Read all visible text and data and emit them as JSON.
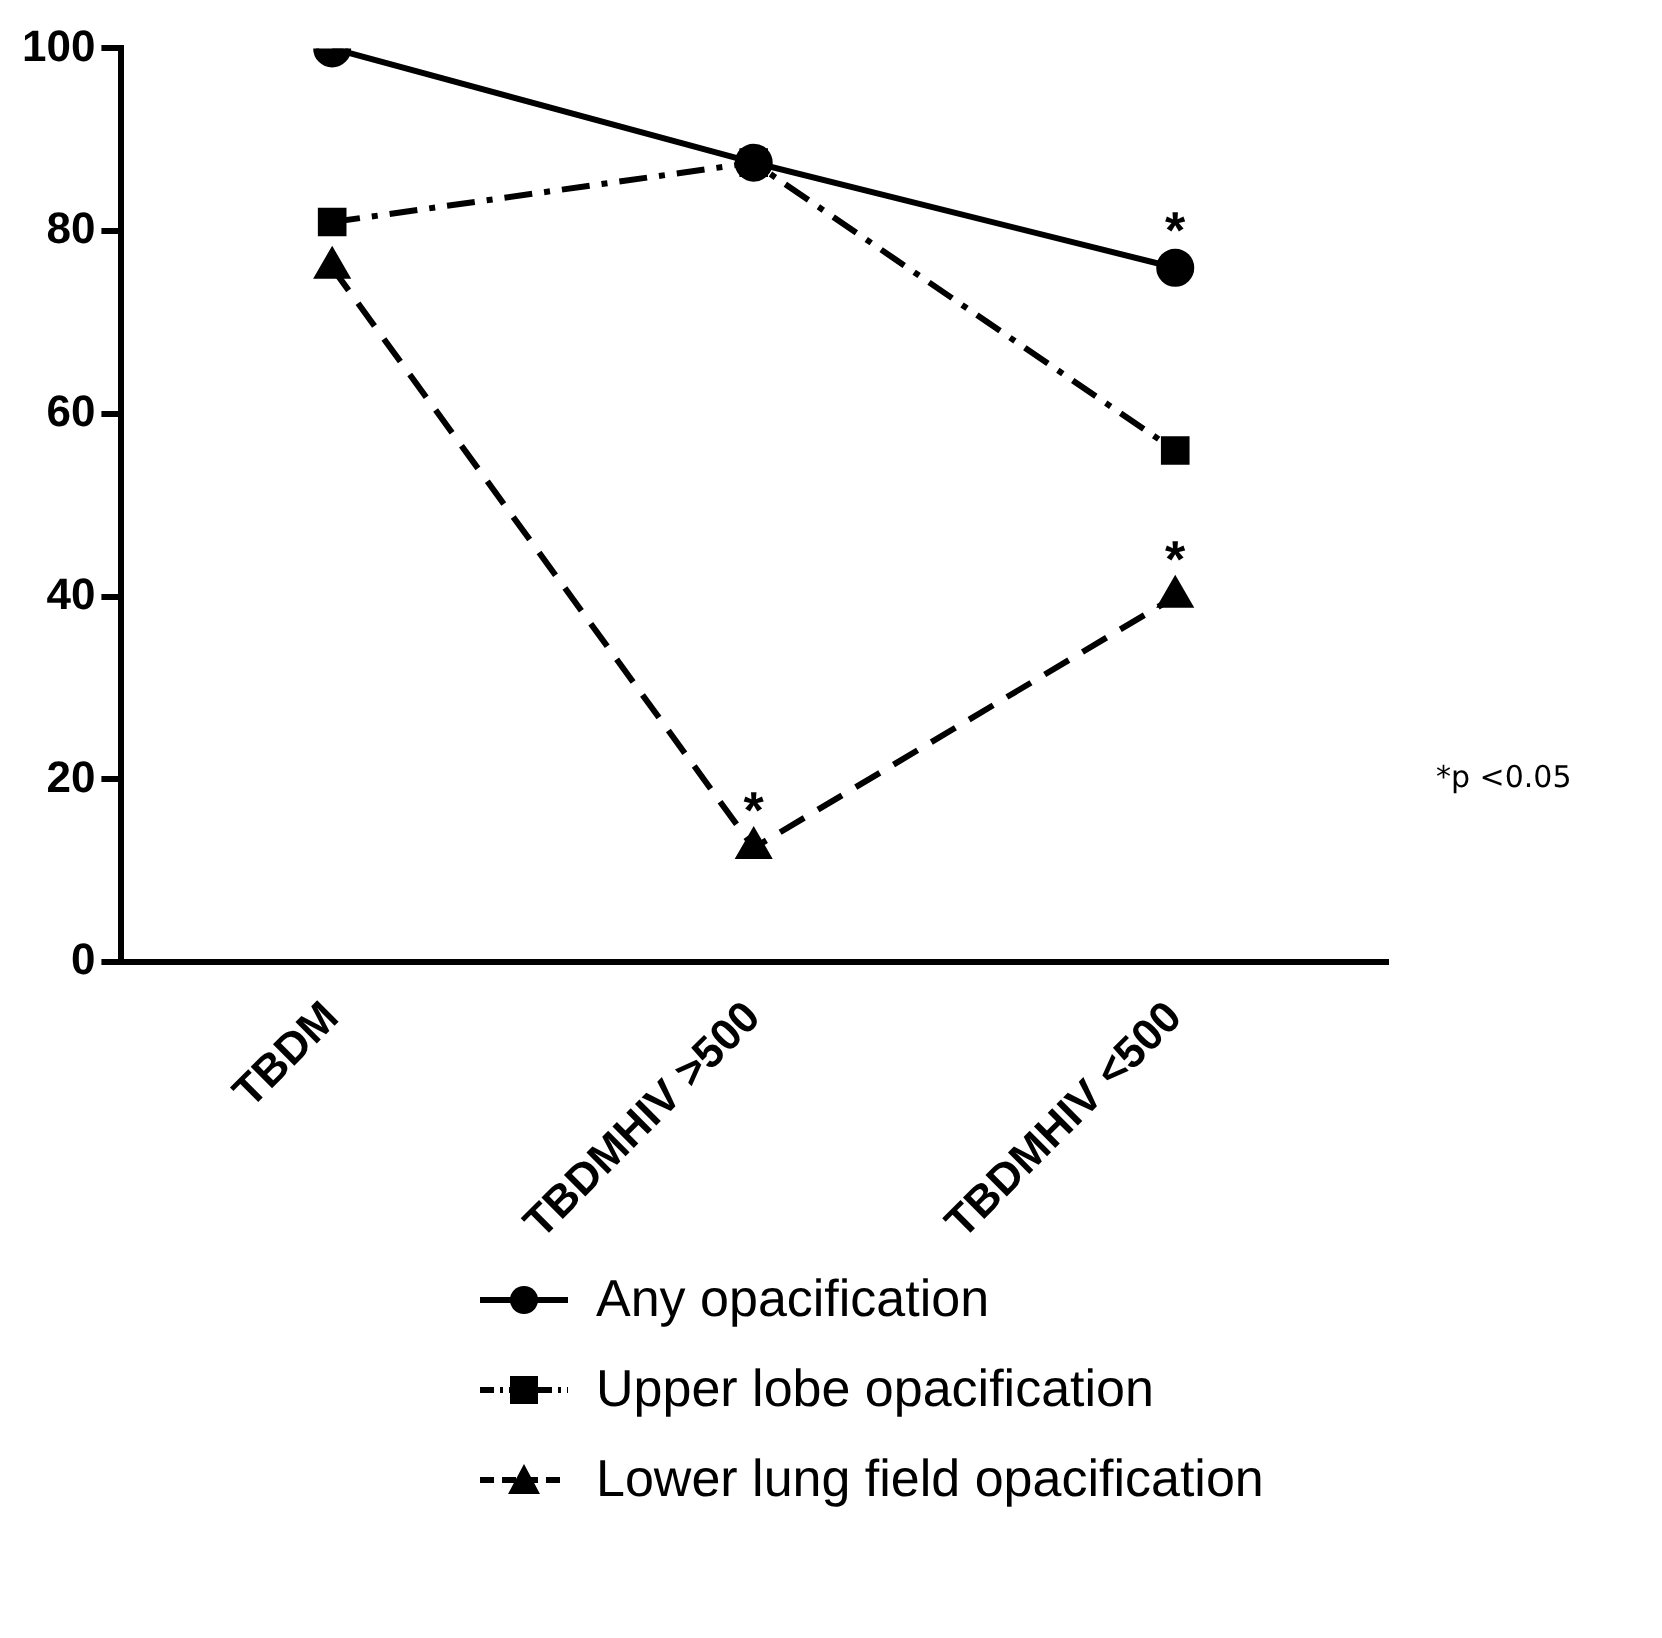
{
  "chart_data": {
    "type": "line",
    "categories": [
      "TBDM",
      "TBDMHIV >500",
      "TBDMHIV <500"
    ],
    "series": [
      {
        "name": "Any opacification",
        "color": "#000000",
        "values": [
          100,
          87.5,
          76
        ],
        "marker": "circle",
        "line_style": "solid"
      },
      {
        "name": "Upper lobe opacification",
        "color": "#000000",
        "values": [
          81,
          87.5,
          56
        ],
        "marker": "square",
        "line_style": "dashdot"
      },
      {
        "name": "Lower lung field opacification",
        "color": "#000000",
        "values": [
          76,
          12.5,
          40
        ],
        "marker": "triangle",
        "line_style": "dashed"
      }
    ],
    "ylim": [
      0,
      100
    ],
    "yticks": [
      0,
      20,
      40,
      60,
      80,
      100
    ],
    "grid": false,
    "legend": "bottom",
    "annotations": [
      {
        "text": "*",
        "x": "TBDMHIV <500",
        "y": 76
      },
      {
        "text": "*",
        "x": "TBDMHIV >500",
        "y": 12.5
      },
      {
        "text": "*",
        "x": "TBDMHIV <500",
        "y": 40
      },
      "*p <0.05"
    ]
  }
}
